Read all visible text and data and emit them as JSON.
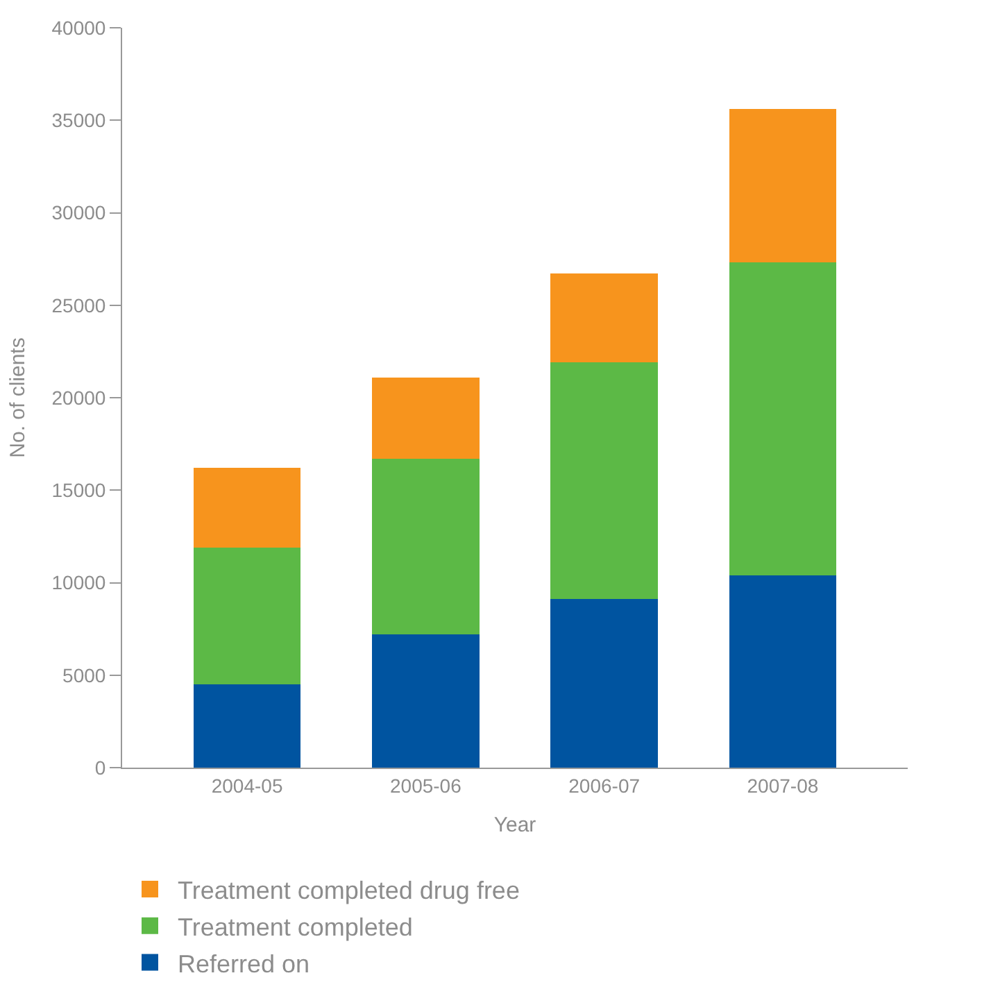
{
  "chart_data": {
    "type": "bar",
    "stacked": true,
    "xlabel": "Year",
    "ylabel": "No. of clients",
    "categories": [
      "2004-05",
      "2005-06",
      "2006-07",
      "2007-08"
    ],
    "series": [
      {
        "name": "Referred on",
        "color": "#0054a0",
        "values": [
          4500,
          7200,
          9100,
          10400
        ]
      },
      {
        "name": "Treatment completed",
        "color": "#5cb946",
        "values": [
          7400,
          9500,
          12800,
          16900
        ]
      },
      {
        "name": "Treatment completed drug free",
        "color": "#f7941d",
        "values": [
          4300,
          4400,
          4800,
          8300
        ]
      }
    ],
    "ylim": [
      0,
      40000
    ],
    "yticks": [
      0,
      5000,
      10000,
      15000,
      20000,
      25000,
      30000,
      35000,
      40000
    ],
    "legend": "bottom left"
  }
}
